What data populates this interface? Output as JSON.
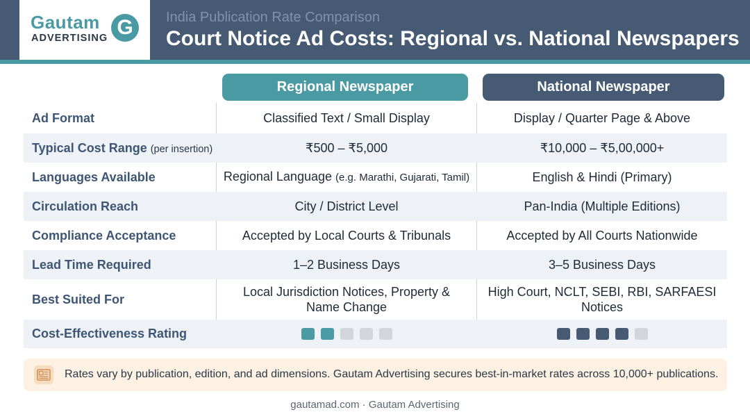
{
  "brand": {
    "name": "Gautam",
    "sub": "ADVERTISING",
    "mark": "G",
    "accent": "#4a9aa4",
    "navy": "#465a73"
  },
  "header": {
    "eyebrow": "India Publication Rate Comparison",
    "title": "Court Notice Ad Costs: Regional vs. National Newspapers"
  },
  "columns": {
    "regional": "Regional Newspaper",
    "national": "National Newspaper"
  },
  "rows": [
    {
      "label": "Ad Format",
      "label_note": "",
      "regional": "Classified Text / Small Display",
      "regional_note": "",
      "national": "Display / Quarter Page & Above"
    },
    {
      "label": "Typical Cost Range",
      "label_note": "(per insertion)",
      "regional": "₹500 – ₹5,000",
      "regional_note": "",
      "national": "₹10,000 – ₹5,00,000+"
    },
    {
      "label": "Languages Available",
      "label_note": "",
      "regional": "Regional Language",
      "regional_note": "(e.g. Marathi, Gujarati, Tamil)",
      "national": "English & Hindi (Primary)"
    },
    {
      "label": "Circulation Reach",
      "label_note": "",
      "regional": "City / District Level",
      "regional_note": "",
      "national": "Pan-India (Multiple Editions)"
    },
    {
      "label": "Compliance Acceptance",
      "label_note": "",
      "regional": "Accepted by Local Courts & Tribunals",
      "regional_note": "",
      "national": "Accepted by All Courts Nationwide"
    },
    {
      "label": "Lead Time Required",
      "label_note": "",
      "regional": "1–2 Business Days",
      "regional_note": "",
      "national": "3–5 Business Days"
    },
    {
      "label": "Best Suited For",
      "label_note": "",
      "regional_line1": "Local Jurisdiction Notices, Property &",
      "regional_line2": "Name Change",
      "national_line1": "High Court, NCLT, SEBI, RBI, SARFAESI",
      "national_line2": "Notices"
    },
    {
      "label": "Cost-Effectiveness Rating",
      "rating_max": 5,
      "regional_rating": 2,
      "national_rating": 4
    }
  ],
  "note": {
    "icon": "newspaper-icon",
    "text": "Rates vary by publication, edition, and ad dimensions. Gautam Advertising secures best-in-market rates across 10,000+ publications."
  },
  "footer": "gautamad.com · Gautam Advertising"
}
